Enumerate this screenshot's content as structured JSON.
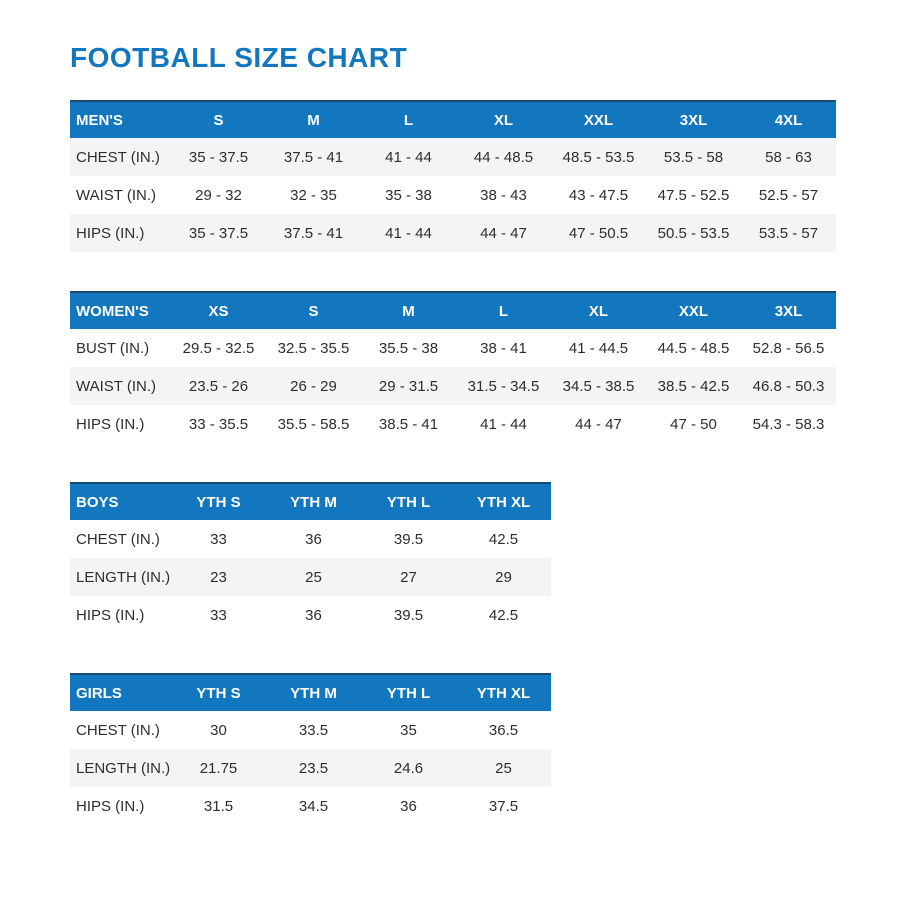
{
  "page": {
    "title": "FOOTBALL SIZE CHART"
  },
  "colors": {
    "accent_blue": "#1277BE",
    "header_text": "#FFFFFF",
    "row_shade": "#F3F4F5",
    "body_text": "#2E2E2E",
    "table_top_border": "#1A4971"
  },
  "tables": [
    {
      "name": "mens",
      "label": "MEN'S",
      "columns": [
        "S",
        "M",
        "L",
        "XL",
        "XXL",
        "3XL",
        "4XL"
      ],
      "rows": [
        {
          "label": "CHEST (IN.)",
          "values": [
            "35 - 37.5",
            "37.5 - 41",
            "41 - 44",
            "44 - 48.5",
            "48.5 - 53.5",
            "53.5 - 58",
            "58 - 63"
          ],
          "shaded": true
        },
        {
          "label": "WAIST (IN.)",
          "values": [
            "29 - 32",
            "32 - 35",
            "35 - 38",
            "38 - 43",
            "43 - 47.5",
            "47.5 - 52.5",
            "52.5 - 57"
          ],
          "shaded": false
        },
        {
          "label": "HIPS (IN.)",
          "values": [
            "35 - 37.5",
            "37.5 - 41",
            "41 - 44",
            "44 - 47",
            "47 - 50.5",
            "50.5 - 53.5",
            "53.5 - 57"
          ],
          "shaded": true
        }
      ]
    },
    {
      "name": "womens",
      "label": "WOMEN'S",
      "columns": [
        "XS",
        "S",
        "M",
        "L",
        "XL",
        "XXL",
        "3XL"
      ],
      "rows": [
        {
          "label": "BUST (IN.)",
          "values": [
            "29.5 - 32.5",
            "32.5 - 35.5",
            "35.5 - 38",
            "38 - 41",
            "41 - 44.5",
            "44.5 - 48.5",
            "52.8 - 56.5"
          ],
          "shaded": false
        },
        {
          "label": "WAIST (IN.)",
          "values": [
            "23.5 - 26",
            "26 - 29",
            "29 - 31.5",
            "31.5 - 34.5",
            "34.5 - 38.5",
            "38.5 - 42.5",
            "46.8 - 50.3"
          ],
          "shaded": true
        },
        {
          "label": "HIPS (IN.)",
          "values": [
            "33 - 35.5",
            "35.5 - 58.5",
            "38.5 - 41",
            "41 - 44",
            "44 - 47",
            "47 - 50",
            "54.3 - 58.3"
          ],
          "shaded": false
        }
      ]
    },
    {
      "name": "boys",
      "label": "BOYS",
      "columns": [
        "YTH S",
        "YTH M",
        "YTH L",
        "YTH XL"
      ],
      "rows": [
        {
          "label": "CHEST (IN.)",
          "values": [
            "33",
            "36",
            "39.5",
            "42.5"
          ],
          "shaded": false
        },
        {
          "label": "LENGTH (IN.)",
          "values": [
            "23",
            "25",
            "27",
            "29"
          ],
          "shaded": true
        },
        {
          "label": "HIPS (IN.)",
          "values": [
            "33",
            "36",
            "39.5",
            "42.5"
          ],
          "shaded": false
        }
      ]
    },
    {
      "name": "girls",
      "label": "GIRLS",
      "columns": [
        "YTH S",
        "YTH M",
        "YTH L",
        "YTH XL"
      ],
      "rows": [
        {
          "label": "CHEST (IN.)",
          "values": [
            "30",
            "33.5",
            "35",
            "36.5"
          ],
          "shaded": false
        },
        {
          "label": "LENGTH (IN.)",
          "values": [
            "21.75",
            "23.5",
            "24.6",
            "25"
          ],
          "shaded": true
        },
        {
          "label": "HIPS (IN.)",
          "values": [
            "31.5",
            "34.5",
            "36",
            "37.5"
          ],
          "shaded": false
        }
      ]
    }
  ]
}
